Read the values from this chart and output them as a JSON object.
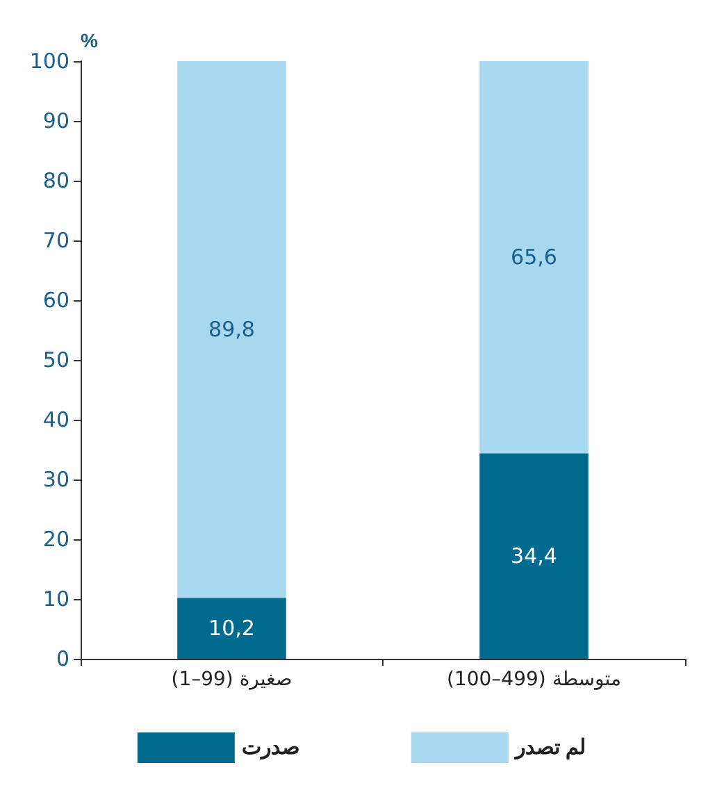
{
  "chart_data": {
    "type": "bar",
    "stacked": true,
    "ylabel": "%",
    "categories": [
      "(1–99) صغيرة",
      "(100–499) متوسطة"
    ],
    "series": [
      {
        "name": "صدرت",
        "color": "#006b8f",
        "values": [
          10.2,
          34.4
        ],
        "value_labels": [
          "10,2",
          "34,4"
        ]
      },
      {
        "name": "لم تصدر",
        "color": "#a8d8f0",
        "values": [
          89.8,
          65.6
        ],
        "value_labels": [
          "89,8",
          "65,6"
        ]
      }
    ],
    "ylim": [
      0,
      100
    ],
    "yticks": [
      0,
      10,
      20,
      30,
      40,
      50,
      60,
      70,
      80,
      90,
      100
    ],
    "grid": false,
    "legend": "bottom"
  }
}
